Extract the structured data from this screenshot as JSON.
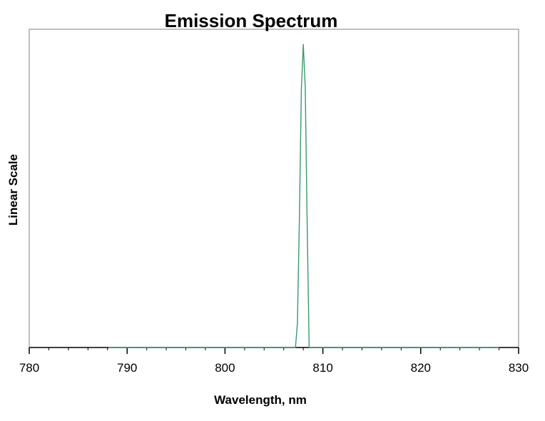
{
  "chart_data": {
    "type": "line",
    "title": "Emission Spectrum",
    "xlabel": "Wavelength, nm",
    "ylabel": "Linear Scale",
    "xlim": [
      780,
      830
    ],
    "ylim": [
      0,
      1.05
    ],
    "x_ticks": [
      "780",
      "790",
      "800",
      "810",
      "820",
      "830"
    ],
    "x_minor_step": 2,
    "grid": false,
    "legend": "none",
    "colors": {
      "series": "#3a9a6a",
      "axis": "#000000",
      "frame": "#808080"
    },
    "series": [
      {
        "x": [
          788.1,
          807.2,
          807.4,
          807.6,
          807.8,
          808.0,
          808.2,
          808.4,
          808.6,
          828.0
        ],
        "y": [
          0,
          0,
          0.08,
          0.42,
          0.85,
          1.0,
          0.86,
          0.4,
          0,
          0
        ]
      }
    ]
  }
}
